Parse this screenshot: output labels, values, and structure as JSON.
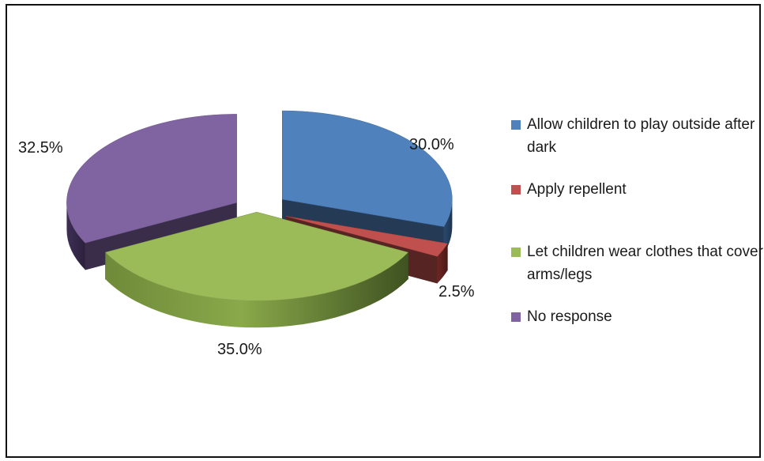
{
  "chart_data": {
    "type": "pie",
    "categories": [
      "Allow children to play outside after dark",
      "Apply repellent",
      "Let children wear clothes that cover arms/legs",
      "No response"
    ],
    "values": [
      30.0,
      2.5,
      35.0,
      32.5
    ],
    "labels": [
      "30.0%",
      "2.5%",
      "35.0%",
      "32.5%"
    ],
    "colors": [
      "#4f81bd",
      "#c0504d",
      "#9bbb59",
      "#8064a2"
    ],
    "style": "3d exploded",
    "legend": "right",
    "title": ""
  }
}
